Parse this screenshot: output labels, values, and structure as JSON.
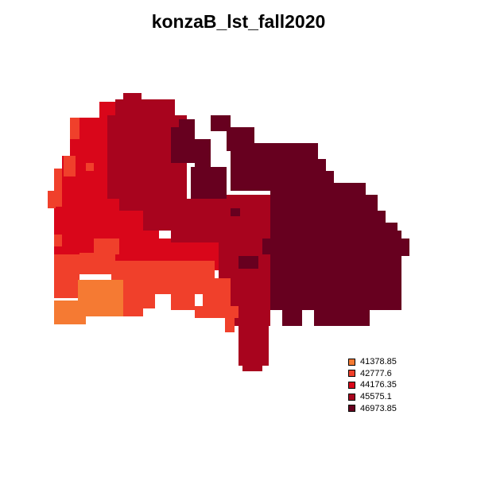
{
  "title": "konzaB_lst_fall2020",
  "legend": {
    "items": [
      {
        "label": "41378.85",
        "color": "#F57A33"
      },
      {
        "label": "42777.6",
        "color": "#F0402B"
      },
      {
        "label": "44176.35",
        "color": "#D9061A"
      },
      {
        "label": "45575.1",
        "color": "#A8041E"
      },
      {
        "label": "46973.85",
        "color": "#67001F"
      }
    ]
  }
}
